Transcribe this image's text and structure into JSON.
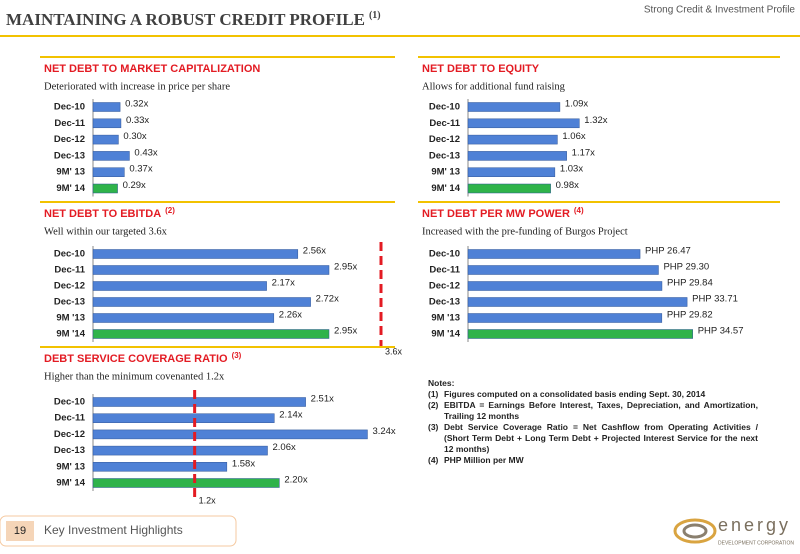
{
  "header": {
    "title": "MAINTAINING A ROBUST CREDIT PROFILE",
    "title_note": "(1)",
    "section": "Strong Credit & Investment Profile"
  },
  "chart_data": [
    {
      "type": "bar",
      "title": "NET DEBT TO MARKET CAPITALIZATION",
      "subtitle": "Deteriorated with increase in price per share",
      "categories": [
        "Dec-10",
        "Dec-11",
        "Dec-12",
        "Dec-13",
        "9M' 13",
        "9M' 14"
      ],
      "values": [
        0.32,
        0.33,
        0.3,
        0.43,
        0.37,
        0.29
      ],
      "value_labels": [
        "0.32x",
        "0.33x",
        "0.30x",
        "0.43x",
        "0.37x",
        "0.29x"
      ],
      "colors": [
        "#4f81d6",
        "#4f81d6",
        "#4f81d6",
        "#4f81d6",
        "#4f81d6",
        "#2fb34a"
      ],
      "xlim": [
        0,
        3.4
      ]
    },
    {
      "type": "bar",
      "title": "NET DEBT TO EQUITY",
      "subtitle": "Allows for additional fund raising",
      "categories": [
        "Dec-10",
        "Dec-11",
        "Dec-12",
        "Dec-13",
        "9M' 13",
        "9M' 14"
      ],
      "values": [
        1.09,
        1.32,
        1.06,
        1.17,
        1.03,
        0.98
      ],
      "value_labels": [
        "1.09x",
        "1.32x",
        "1.06x",
        "1.17x",
        "1.03x",
        "0.98x"
      ],
      "colors": [
        "#4f81d6",
        "#4f81d6",
        "#4f81d6",
        "#4f81d6",
        "#4f81d6",
        "#2fb34a"
      ],
      "xlim": [
        0,
        3.7
      ]
    },
    {
      "type": "bar",
      "title": "NET DEBT TO EBITDA",
      "title_note": "(2)",
      "subtitle": "Well within our targeted 3.6x",
      "categories": [
        "Dec-10",
        "Dec-11",
        "Dec-12",
        "Dec-13",
        "9M '13",
        "9M '14"
      ],
      "values": [
        2.56,
        2.95,
        2.17,
        2.72,
        2.26,
        2.95
      ],
      "value_labels": [
        "2.56x",
        "2.95x",
        "2.17x",
        "2.72x",
        "2.26x",
        "2.95x"
      ],
      "colors": [
        "#4f81d6",
        "#4f81d6",
        "#4f81d6",
        "#4f81d6",
        "#4f81d6",
        "#2fb34a"
      ],
      "xlim": [
        0,
        3.6
      ],
      "target": {
        "value": 3.6,
        "label": "3.6x"
      }
    },
    {
      "type": "bar",
      "title": "NET DEBT PER MW POWER",
      "title_note": "(4)",
      "subtitle": "Increased with the pre-funding of Burgos Project",
      "categories": [
        "Dec-10",
        "Dec-11",
        "Dec-12",
        "Dec-13",
        "9M '13",
        "9M '14"
      ],
      "values": [
        26.47,
        29.3,
        29.84,
        33.71,
        29.82,
        34.57
      ],
      "value_labels": [
        "PHP 26.47",
        "PHP 29.30",
        "PHP 29.84",
        "PHP 33.71",
        "PHP 29.82",
        "PHP 34.57"
      ],
      "colors": [
        "#4f81d6",
        "#4f81d6",
        "#4f81d6",
        "#4f81d6",
        "#4f81d6",
        "#2fb34a"
      ],
      "xlim": [
        0,
        48
      ]
    },
    {
      "type": "bar",
      "title": "DEBT SERVICE COVERAGE RATIO",
      "title_note": "(3)",
      "subtitle": "Higher than the minimum covenanted 1.2x",
      "categories": [
        "Dec-10",
        "Dec-11",
        "Dec-12",
        "Dec-13",
        "9M' 13",
        "9M' 14"
      ],
      "values": [
        2.51,
        2.14,
        3.24,
        2.06,
        1.58,
        2.2
      ],
      "value_labels": [
        "2.51x",
        "2.14x",
        "3.24x",
        "2.06x",
        "1.58x",
        "2.20x"
      ],
      "colors": [
        "#4f81d6",
        "#4f81d6",
        "#4f81d6",
        "#4f81d6",
        "#4f81d6",
        "#2fb34a"
      ],
      "xlim": [
        0,
        3.4
      ],
      "target": {
        "value": 1.2,
        "label": "1.2x"
      }
    }
  ],
  "notes": {
    "title": "Notes:",
    "items": [
      {
        "marker": "(1)",
        "text": "Figures computed on a consolidated basis ending Sept. 30, 2014"
      },
      {
        "marker": "(2)",
        "text": "EBITDA = Earnings Before Interest, Taxes, Depreciation, and Amortization, Trailing 12 months"
      },
      {
        "marker": "(3)",
        "text": "Debt Service Coverage Ratio = Net Cashflow from Operating Activities / (Short Term Debt + Long Term Debt + Projected Interest Service for the next 12 months)"
      },
      {
        "marker": "(4)",
        "text": "PHP Million per MW"
      }
    ]
  },
  "footer": {
    "page": "19",
    "section": "Key Investment Highlights",
    "logo": "energy",
    "logo_sub": "DEVELOPMENT CORPORATION"
  }
}
